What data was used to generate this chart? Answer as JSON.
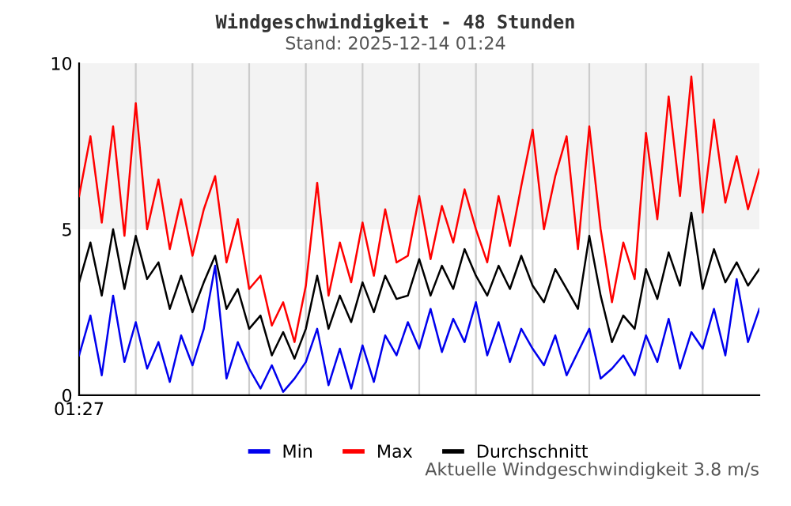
{
  "chart_data": {
    "type": "line",
    "title": "Windgeschwindigkeit - 48 Stunden",
    "subtitle": "Stand: 2025-12-14 01:24",
    "categories": [
      "01:27",
      null,
      null,
      null,
      null,
      null,
      null,
      null,
      null,
      null,
      null,
      null,
      null,
      null,
      null,
      null,
      null,
      null,
      null,
      null,
      null,
      null,
      null,
      null,
      null,
      null,
      null,
      null,
      null,
      null,
      null,
      null,
      null,
      null,
      null,
      null,
      null,
      null,
      null,
      null,
      null,
      null,
      null,
      null,
      null,
      null,
      null,
      null,
      null,
      null,
      null,
      null,
      null,
      null,
      null,
      null,
      null,
      null,
      null,
      null,
      null
    ],
    "series": [
      {
        "name": "Min",
        "color": "#0000ee",
        "values": [
          1.2,
          2.4,
          0.6,
          3.0,
          1.0,
          2.2,
          0.8,
          1.6,
          0.4,
          1.8,
          0.9,
          2.0,
          3.9,
          0.5,
          1.6,
          0.8,
          0.2,
          0.9,
          0.1,
          0.5,
          1.0,
          2.0,
          0.3,
          1.4,
          0.2,
          1.5,
          0.4,
          1.8,
          1.2,
          2.2,
          1.4,
          2.6,
          1.3,
          2.3,
          1.6,
          2.8,
          1.2,
          2.2,
          1.0,
          2.0,
          1.4,
          0.9,
          1.8,
          0.6,
          1.3,
          2.0,
          0.5,
          0.8,
          1.2,
          0.6,
          1.8,
          1.0,
          2.3,
          0.8,
          1.9,
          1.4,
          2.6,
          1.2,
          3.5,
          1.6,
          2.6
        ]
      },
      {
        "name": "Max",
        "color": "#ff0000",
        "values": [
          6.0,
          7.8,
          5.2,
          8.1,
          4.8,
          8.8,
          5.0,
          6.5,
          4.4,
          5.9,
          4.2,
          5.6,
          6.6,
          4.0,
          5.3,
          3.2,
          3.6,
          2.1,
          2.8,
          1.6,
          3.3,
          6.4,
          3.0,
          4.6,
          3.4,
          5.2,
          3.6,
          5.6,
          4.0,
          4.2,
          6.0,
          4.1,
          5.7,
          4.6,
          6.2,
          5.0,
          4.0,
          6.0,
          4.5,
          6.3,
          8.0,
          5.0,
          6.6,
          7.8,
          4.4,
          8.1,
          5.0,
          2.8,
          4.6,
          3.5,
          7.9,
          5.3,
          9.0,
          6.0,
          9.6,
          5.5,
          8.3,
          5.8,
          7.2,
          5.6,
          6.8
        ]
      },
      {
        "name": "Durchschnitt",
        "color": "#000000",
        "values": [
          3.4,
          4.6,
          3.0,
          5.0,
          3.2,
          4.8,
          3.5,
          4.0,
          2.6,
          3.6,
          2.5,
          3.4,
          4.2,
          2.6,
          3.2,
          2.0,
          2.4,
          1.2,
          1.9,
          1.1,
          2.0,
          3.6,
          2.0,
          3.0,
          2.2,
          3.4,
          2.5,
          3.6,
          2.9,
          3.0,
          4.1,
          3.0,
          3.9,
          3.2,
          4.4,
          3.6,
          3.0,
          3.9,
          3.2,
          4.2,
          3.3,
          2.8,
          3.8,
          3.2,
          2.6,
          4.8,
          3.0,
          1.6,
          2.4,
          2.0,
          3.8,
          2.9,
          4.3,
          3.3,
          5.5,
          3.2,
          4.4,
          3.4,
          4.0,
          3.3,
          3.8
        ]
      }
    ],
    "ylim": [
      0,
      10
    ],
    "yticks": [
      0,
      5,
      10
    ],
    "bands": [
      {
        "axis": "y",
        "from": 5,
        "to": 10,
        "color": "#f3f3f3"
      }
    ],
    "grid": "x",
    "legend": "bottom",
    "marker": "none",
    "line_style": "solid",
    "annotations": [
      "Aktuelle Windgeschwindigkeit 3.8 m/s"
    ]
  }
}
